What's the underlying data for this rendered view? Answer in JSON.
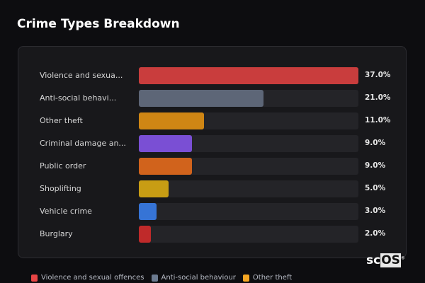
{
  "chart_data": {
    "type": "bar",
    "orientation": "horizontal",
    "title": "Crime Types Breakdown",
    "categories": [
      "Violence and sexual offences",
      "Anti-social behaviour",
      "Other theft",
      "Criminal damage and arson",
      "Public order",
      "Shoplifting",
      "Vehicle crime",
      "Burglary"
    ],
    "tick_labels": [
      "Violence and sexua...",
      "Anti-social behavi...",
      "Other theft",
      "Criminal damage an...",
      "Public order",
      "Shoplifting",
      "Vehicle crime",
      "Burglary"
    ],
    "values": [
      37.0,
      21.0,
      11.0,
      9.0,
      9.0,
      5.0,
      3.0,
      2.0
    ],
    "value_labels": [
      "37.0%",
      "21.0%",
      "11.0%",
      "9.0%",
      "9.0%",
      "5.0%",
      "3.0%",
      "2.0%"
    ],
    "colors": [
      "#c93d3d",
      "#5d6677",
      "#cf8614",
      "#7a4fd4",
      "#d1631c",
      "#c89d14",
      "#3674d6",
      "#bf2a2a"
    ],
    "xlim": [
      0,
      37
    ],
    "legend": {
      "placement": "bottom",
      "entries": [
        {
          "label": "Violence and sexual offences",
          "color": "#e84545"
        },
        {
          "label": "Anti-social behaviour",
          "color": "#6b7a90"
        },
        {
          "label": "Other theft",
          "color": "#f5a623"
        }
      ]
    }
  },
  "logo": {
    "text_a": "sc",
    "text_b": "OS",
    "mark": "®"
  }
}
